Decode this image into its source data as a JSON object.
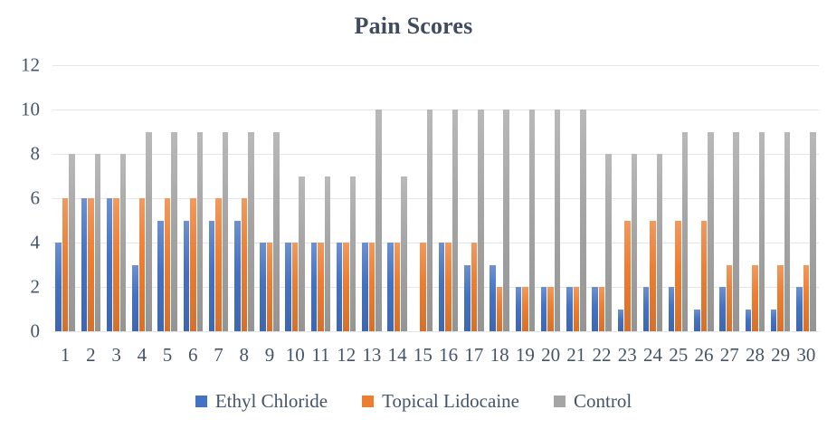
{
  "chart_data": {
    "type": "bar",
    "title": "Pain Scores",
    "categories": [
      "1",
      "2",
      "3",
      "4",
      "5",
      "6",
      "7",
      "8",
      "9",
      "10",
      "11",
      "12",
      "13",
      "14",
      "15",
      "16",
      "17",
      "18",
      "19",
      "20",
      "21",
      "22",
      "23",
      "24",
      "25",
      "26",
      "27",
      "28",
      "29",
      "30"
    ],
    "series": [
      {
        "name": "Ethyl Chloride",
        "color": "#4472C4",
        "values": [
          4,
          6,
          6,
          3,
          5,
          5,
          5,
          5,
          4,
          4,
          4,
          4,
          4,
          4,
          0,
          4,
          3,
          3,
          2,
          2,
          2,
          2,
          1,
          2,
          2,
          1,
          2,
          1,
          1,
          2
        ]
      },
      {
        "name": "Topical Lidocaine",
        "color": "#ED7D31",
        "values": [
          6,
          6,
          6,
          6,
          6,
          6,
          6,
          6,
          4,
          4,
          4,
          4,
          4,
          4,
          4,
          4,
          4,
          2,
          2,
          2,
          2,
          2,
          5,
          5,
          5,
          5,
          3,
          3,
          3,
          3
        ]
      },
      {
        "name": "Control",
        "color": "#A5A5A5",
        "values": [
          8,
          8,
          8,
          9,
          9,
          9,
          9,
          9,
          9,
          7,
          7,
          7,
          10,
          7,
          10,
          10,
          10,
          10,
          10,
          10,
          10,
          8,
          8,
          8,
          9,
          9,
          9,
          9,
          9,
          9
        ]
      }
    ],
    "xlabel": "",
    "ylabel": "",
    "ylim": [
      0,
      12
    ],
    "yticks": [
      0,
      2,
      4,
      6,
      8,
      10,
      12
    ],
    "grid": true,
    "legend_position": "bottom"
  },
  "colors": {
    "text": "#44546a",
    "title_text": "#3e4b60",
    "gridline": "#e2e5ea",
    "background": "#ffffff"
  }
}
